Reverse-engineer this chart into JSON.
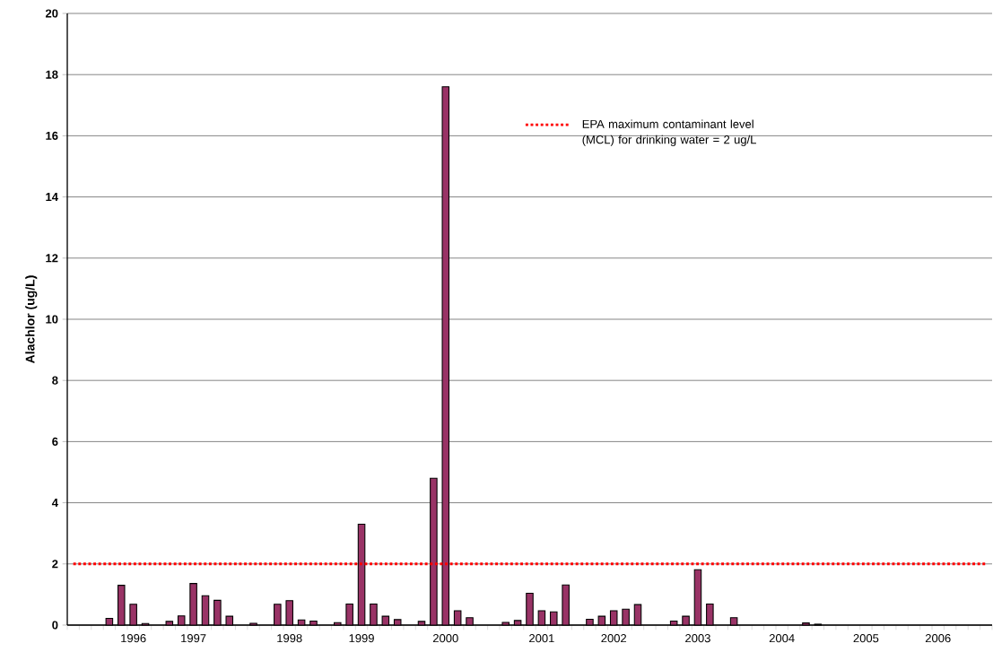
{
  "chart_data": {
    "type": "bar",
    "ylabel": "Alachlor (ug/L)",
    "categories": [
      null,
      null,
      null,
      null,
      null,
      "1996",
      null,
      null,
      null,
      null,
      "1997",
      null,
      null,
      null,
      null,
      null,
      null,
      null,
      "1998",
      null,
      null,
      null,
      null,
      null,
      "1999",
      null,
      null,
      null,
      null,
      null,
      null,
      "2000",
      null,
      null,
      null,
      null,
      null,
      null,
      null,
      "2001",
      null,
      null,
      null,
      null,
      null,
      "2002",
      null,
      null,
      null,
      null,
      null,
      null,
      "2003",
      null,
      null,
      null,
      null,
      null,
      null,
      "2004",
      null,
      null,
      null,
      null,
      null,
      null,
      "2005",
      null,
      null,
      null,
      null,
      null,
      "2006",
      null,
      null,
      null,
      null
    ],
    "series": [
      {
        "color": "#993366",
        "values": [
          null,
          null,
          null,
          0.22,
          1.3,
          0.68,
          0.05,
          null,
          0.12,
          0.3,
          1.36,
          0.96,
          0.81,
          0.29,
          null,
          0.06,
          null,
          0.68,
          0.8,
          0.17,
          0.13,
          null,
          0.08,
          0.69,
          3.3,
          0.69,
          0.29,
          0.18,
          null,
          0.12,
          4.8,
          17.6,
          0.47,
          0.24,
          null,
          null,
          0.09,
          0.15,
          1.04,
          0.47,
          0.43,
          1.31,
          null,
          0.19,
          0.29,
          0.47,
          0.52,
          0.67,
          null,
          null,
          0.13,
          0.29,
          1.81,
          0.69,
          null,
          0.24,
          null,
          null,
          null,
          null,
          null,
          0.07,
          0.03,
          null,
          null,
          null,
          null,
          null,
          null,
          null,
          null,
          null,
          null,
          null,
          null,
          null,
          null
        ]
      },
      {
        "type": "line",
        "name": "EPA maximum contaminant level (MCL) for drinking water = 2 ug/L",
        "color": "#ff0000",
        "line_style": "dotted",
        "marker": "none",
        "values": [
          2,
          2,
          2,
          2,
          2,
          2,
          2,
          2,
          2,
          2,
          2,
          2,
          2,
          2,
          2,
          2,
          2,
          2,
          2,
          2,
          2,
          2,
          2,
          2,
          2,
          2,
          2,
          2,
          2,
          2,
          2,
          2,
          2,
          2,
          2,
          2,
          2,
          2,
          2,
          2,
          2,
          2,
          2,
          2,
          2,
          2,
          2,
          2,
          2,
          2,
          2,
          2,
          2,
          2,
          2,
          2,
          2,
          2,
          2,
          2,
          2,
          2,
          2,
          2,
          2,
          2,
          2,
          2,
          2,
          2,
          2,
          2,
          2,
          2,
          2,
          2,
          2
        ]
      }
    ],
    "ylim": [
      0,
      20
    ],
    "yticks": [
      0,
      2,
      4,
      6,
      8,
      10,
      12,
      14,
      16,
      18,
      20
    ],
    "grid": "y",
    "legend": "top"
  }
}
